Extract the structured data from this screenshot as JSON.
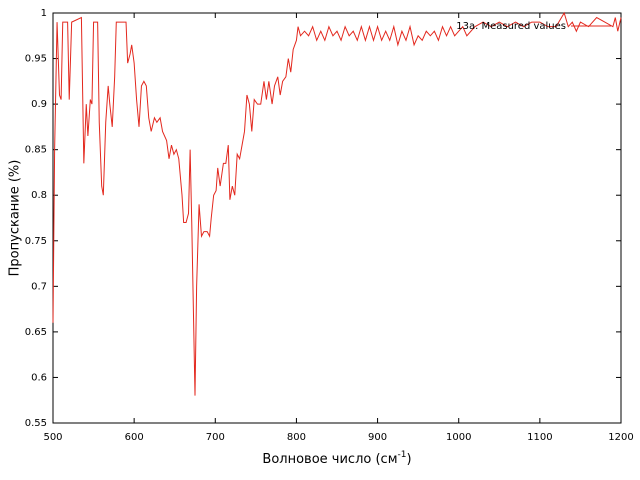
{
  "chart_data": {
    "type": "line",
    "xlabel": {
      "text": "Волновое число (см",
      "sup": "-1",
      "close": ")"
    },
    "ylabel": "Пропускание (%)",
    "legend": "top right",
    "xlim": [
      500,
      1200
    ],
    "ylim": [
      0.55,
      1
    ],
    "xticks": [
      500,
      600,
      700,
      800,
      900,
      1000,
      1100,
      1200
    ],
    "yticks": [
      0.55,
      0.6,
      0.65,
      0.7,
      0.75,
      0.8,
      0.85,
      0.9,
      0.95,
      1
    ],
    "x": [
      500,
      502,
      505,
      508,
      510,
      512,
      518,
      520,
      523,
      535,
      538,
      541,
      543,
      546,
      548,
      550,
      555,
      557,
      560,
      562,
      565,
      568,
      570,
      573,
      576,
      578,
      590,
      592,
      595,
      597,
      600,
      603,
      606,
      609,
      612,
      615,
      618,
      621,
      625,
      628,
      632,
      635,
      640,
      643,
      646,
      649,
      652,
      655,
      659,
      661,
      664,
      667,
      669,
      671,
      675,
      677,
      680,
      683,
      686,
      690,
      693,
      695,
      698,
      701,
      703,
      706,
      710,
      713,
      716,
      718,
      721,
      724,
      727,
      730,
      733,
      736,
      739,
      742,
      745,
      748,
      752,
      756,
      760,
      763,
      766,
      770,
      773,
      777,
      780,
      783,
      787,
      790,
      793,
      796,
      800,
      802,
      805,
      810,
      815,
      820,
      825,
      830,
      835,
      840,
      845,
      850,
      855,
      860,
      865,
      870,
      875,
      880,
      885,
      890,
      895,
      900,
      905,
      910,
      915,
      920,
      925,
      930,
      935,
      940,
      945,
      950,
      955,
      960,
      965,
      970,
      975,
      980,
      985,
      990,
      995,
      1000,
      1005,
      1010,
      1020,
      1030,
      1040,
      1050,
      1060,
      1070,
      1080,
      1090,
      1100,
      1110,
      1120,
      1130,
      1135,
      1140,
      1145,
      1150,
      1160,
      1170,
      1180,
      1190,
      1193,
      1196,
      1200
    ],
    "series": [
      {
        "name": "13a. Measured values",
        "color": "#e3281e",
        "values": [
          0.66,
          0.85,
          0.99,
          0.91,
          0.905,
          0.99,
          0.99,
          0.905,
          0.99,
          0.995,
          0.835,
          0.9,
          0.865,
          0.905,
          0.9,
          0.99,
          0.99,
          0.88,
          0.81,
          0.8,
          0.88,
          0.92,
          0.9,
          0.875,
          0.93,
          0.99,
          0.99,
          0.945,
          0.955,
          0.965,
          0.945,
          0.905,
          0.875,
          0.92,
          0.925,
          0.92,
          0.885,
          0.87,
          0.885,
          0.88,
          0.885,
          0.87,
          0.86,
          0.84,
          0.855,
          0.845,
          0.85,
          0.84,
          0.8,
          0.77,
          0.77,
          0.78,
          0.85,
          0.77,
          0.58,
          0.7,
          0.79,
          0.755,
          0.76,
          0.76,
          0.755,
          0.775,
          0.8,
          0.805,
          0.83,
          0.81,
          0.835,
          0.835,
          0.855,
          0.795,
          0.81,
          0.8,
          0.845,
          0.84,
          0.855,
          0.87,
          0.91,
          0.9,
          0.87,
          0.905,
          0.9,
          0.9,
          0.925,
          0.905,
          0.925,
          0.9,
          0.92,
          0.93,
          0.91,
          0.925,
          0.93,
          0.95,
          0.935,
          0.96,
          0.97,
          0.985,
          0.975,
          0.98,
          0.975,
          0.985,
          0.97,
          0.98,
          0.97,
          0.985,
          0.975,
          0.98,
          0.97,
          0.985,
          0.975,
          0.98,
          0.97,
          0.985,
          0.97,
          0.985,
          0.97,
          0.985,
          0.97,
          0.98,
          0.97,
          0.985,
          0.965,
          0.98,
          0.97,
          0.985,
          0.965,
          0.975,
          0.97,
          0.98,
          0.975,
          0.98,
          0.97,
          0.985,
          0.975,
          0.985,
          0.975,
          0.98,
          0.985,
          0.975,
          0.985,
          0.99,
          0.985,
          0.99,
          0.985,
          0.99,
          0.985,
          0.99,
          0.99,
          0.985,
          0.985,
          1.0,
          0.985,
          0.99,
          0.98,
          0.99,
          0.985,
          0.995,
          0.99,
          0.985,
          0.995,
          0.98,
          0.995
        ]
      }
    ]
  }
}
